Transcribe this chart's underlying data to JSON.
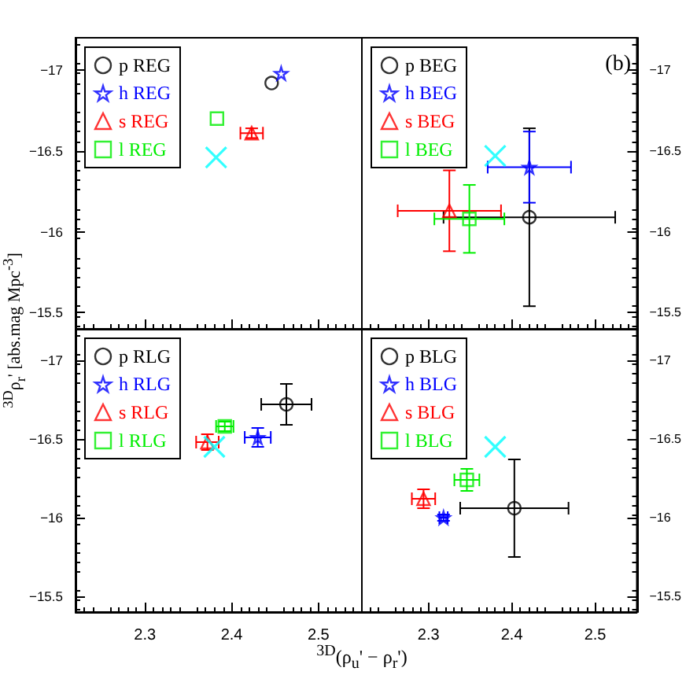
{
  "chart_data": [
    {
      "type": "scatter",
      "ylabel": "$^{3D}$ρ$_{r}$' [abs.mag Mpc$^{-3}$]",
      "xlim": [
        2.22,
        2.55
      ],
      "ylim": [
        -15.4,
        -17.2
      ],
      "xticks": [
        2.3,
        2.4,
        2.5
      ],
      "yticks": [
        {
          "value": -17,
          "label": "−17"
        },
        {
          "value": -16.5,
          "label": "−16.5"
        },
        {
          "value": -16,
          "label": "−16"
        },
        {
          "value": -15.5,
          "label": "−15.5"
        }
      ],
      "tick_labels": "y",
      "legend": "top left",
      "series": [
        {
          "name": "p REG",
          "color": "#000000",
          "marker": "circle",
          "x": [
            2.446
          ],
          "values": [
            -16.92
          ]
        },
        {
          "name": "h REG",
          "color": "#0000ff",
          "marker": "star",
          "x": [
            2.457
          ],
          "values": [
            -16.98
          ]
        },
        {
          "name": "s REG",
          "color": "#ff0000",
          "marker": "triangle",
          "x": [
            2.423
          ],
          "values": [
            -16.61
          ],
          "errors": [
            0.03
          ],
          "xerrors": [
            0.013
          ]
        },
        {
          "name": "l REG",
          "color": "#00ee00",
          "marker": "square",
          "x": [
            2.383
          ],
          "values": [
            -16.7
          ]
        },
        {
          "color": "#00ffff",
          "marker": "cross",
          "x": [
            2.382
          ],
          "values": [
            -16.46
          ]
        }
      ]
    },
    {
      "type": "scatter",
      "annotations": [
        "(b)"
      ],
      "xlim": [
        2.22,
        2.55
      ],
      "ylim": [
        -15.4,
        -17.2
      ],
      "xticks": [
        2.3,
        2.4,
        2.5
      ],
      "yticks": [
        {
          "value": -17,
          "label": "−17"
        },
        {
          "value": -16.5,
          "label": "−16.5"
        },
        {
          "value": -16,
          "label": "−16"
        },
        {
          "value": -15.5,
          "label": "−15.5"
        }
      ],
      "tick_labels": "y",
      "legend": "top left",
      "series": [
        {
          "name": "p BEG",
          "color": "#000000",
          "marker": "circle",
          "x": [
            2.421
          ],
          "values": [
            -16.09
          ],
          "errors": [
            0.55
          ],
          "xerrors": [
            0.103
          ]
        },
        {
          "name": "h BEG",
          "color": "#0000ff",
          "marker": "star",
          "x": [
            2.421
          ],
          "values": [
            -16.4
          ],
          "errors": [
            0.22
          ],
          "xerrors": [
            0.05
          ]
        },
        {
          "name": "s BEG",
          "color": "#ff0000",
          "marker": "triangle",
          "x": [
            2.325
          ],
          "values": [
            -16.13
          ],
          "errors": [
            0.25
          ],
          "xerrors": [
            0.062
          ]
        },
        {
          "name": "l BEG",
          "color": "#00ee00",
          "marker": "square",
          "x": [
            2.349
          ],
          "values": [
            -16.08
          ],
          "errors": [
            0.21
          ],
          "xerrors": [
            0.042
          ]
        },
        {
          "color": "#00ffff",
          "marker": "cross",
          "x": [
            2.38
          ],
          "values": [
            -16.47
          ]
        }
      ]
    },
    {
      "type": "scatter",
      "xlabel": "$^{3D}$(ρ$_{u}$' − ρ$_{r}$')",
      "xlim": [
        2.22,
        2.55
      ],
      "ylim": [
        -15.4,
        -17.2
      ],
      "xticks": [
        2.3,
        2.4,
        2.5
      ],
      "yticks": [
        {
          "value": -17,
          "label": "−17"
        },
        {
          "value": -16.5,
          "label": "−16.5"
        },
        {
          "value": -16,
          "label": "−16"
        },
        {
          "value": -15.5,
          "label": "−15.5"
        }
      ],
      "legend": "top left",
      "series": [
        {
          "name": "p RLG",
          "color": "#000000",
          "marker": "circle",
          "x": [
            2.463
          ],
          "values": [
            -16.72
          ],
          "errors": [
            0.13
          ],
          "xerrors": [
            0.029
          ]
        },
        {
          "name": "h RLG",
          "color": "#0000ff",
          "marker": "star",
          "x": [
            2.43
          ],
          "values": [
            -16.51
          ],
          "errors": [
            0.06
          ],
          "xerrors": [
            0.015
          ]
        },
        {
          "name": "s RLG",
          "color": "#ff0000",
          "marker": "triangle",
          "x": [
            2.372
          ],
          "values": [
            -16.48
          ],
          "errors": [
            0.05
          ],
          "xerrors": [
            0.013
          ]
        },
        {
          "name": "l RLG",
          "color": "#00ee00",
          "marker": "square",
          "x": [
            2.392
          ],
          "values": [
            -16.58
          ],
          "errors": [
            0.03
          ],
          "xerrors": [
            0.01
          ]
        },
        {
          "color": "#00ffff",
          "marker": "cross",
          "x": [
            2.38
          ],
          "values": [
            -16.45
          ]
        }
      ]
    },
    {
      "type": "scatter",
      "xlim": [
        2.22,
        2.55
      ],
      "ylim": [
        -15.4,
        -17.2
      ],
      "xticks": [
        2.3,
        2.4,
        2.5
      ],
      "yticks": [
        {
          "value": -17,
          "label": "−17"
        },
        {
          "value": -16.5,
          "label": "−16.5"
        },
        {
          "value": -16,
          "label": "−16"
        },
        {
          "value": -15.5,
          "label": "−15.5"
        }
      ],
      "legend": "top left",
      "series": [
        {
          "name": "p BLG",
          "color": "#000000",
          "marker": "circle",
          "x": [
            2.403
          ],
          "values": [
            -16.06
          ],
          "errors": [
            0.31
          ],
          "xerrors": [
            0.065
          ]
        },
        {
          "name": "h BLG",
          "color": "#0000ff",
          "marker": "star",
          "x": [
            2.318
          ],
          "values": [
            -16.0
          ],
          "errors": [
            0.02
          ],
          "xerrors": [
            0.005
          ]
        },
        {
          "name": "s BLG",
          "color": "#ff0000",
          "marker": "triangle",
          "x": [
            2.294
          ],
          "values": [
            -16.12
          ],
          "errors": [
            0.06
          ],
          "xerrors": [
            0.014
          ]
        },
        {
          "name": "l BLG",
          "color": "#00ee00",
          "marker": "square",
          "x": [
            2.346
          ],
          "values": [
            -16.24
          ],
          "errors": [
            0.07
          ],
          "xerrors": [
            0.015
          ]
        },
        {
          "color": "#00ffff",
          "marker": "cross",
          "x": [
            2.38
          ],
          "values": [
            -16.45
          ]
        }
      ]
    }
  ]
}
